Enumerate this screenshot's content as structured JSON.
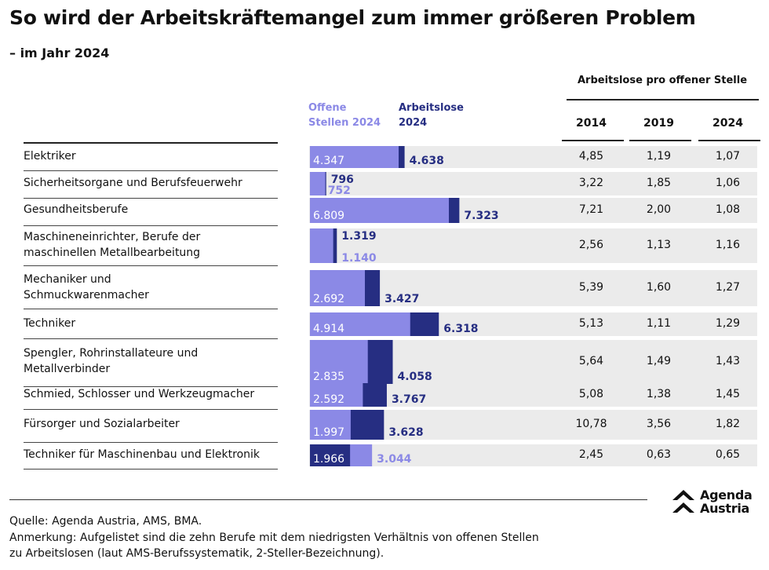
{
  "title": "So wird der Arbeitskräftemangel zum immer größeren Problem",
  "subtitle": "– im Jahr 2024",
  "ratio_header": "Arbeitslose pro offener Stelle",
  "legend": {
    "open_line1": "Offene",
    "open_line2": "Stellen 2024",
    "unemp_line1": "Arbeitslose",
    "unemp_line2": "2024"
  },
  "colors": {
    "open": "#8b89e6",
    "unemployed": "#262e82",
    "row_bg": "#ebebeb"
  },
  "years": [
    "2014",
    "2019",
    "2024"
  ],
  "chart_data": {
    "type": "bar",
    "orientation": "horizontal",
    "series": [
      {
        "name": "Offene Stellen 2024",
        "values": [
          4347,
          752,
          6809,
          1140,
          2692,
          4914,
          2835,
          2592,
          1997,
          3044
        ]
      },
      {
        "name": "Arbeitslose 2024",
        "values": [
          4638,
          796,
          7323,
          1319,
          3427,
          6318,
          4058,
          3767,
          3628,
          1966
        ]
      }
    ],
    "categories": [
      "Elektriker",
      "Sicherheitsorgane und Berufsfeuerwehr",
      "Gesundheitsberufe",
      "Maschineneinrichter, Berufe der maschinellen Metallbearbeitung",
      "Mechaniker und Schmuckwarenmacher",
      "Techniker",
      "Spengler, Rohrinstallateure und Metallverbinder",
      "Schmied, Schlosser und Werkzeugmacher",
      "Fürsorger und Sozialarbeiter",
      "Techniker für Maschinenbau und Elektronik"
    ],
    "rows": [
      {
        "lines": [
          "Elektriker"
        ],
        "open": 4347,
        "open_label": "4.347",
        "unemployed": 4638,
        "unemployed_label": "4.638",
        "ratio": [
          "4,85",
          "1,19",
          "1,07"
        ]
      },
      {
        "lines": [
          "Sicherheitsorgane und Berufsfeuerwehr"
        ],
        "open": 752,
        "open_label": "752",
        "unemployed": 796,
        "unemployed_label": "796",
        "ratio": [
          "3,22",
          "1,85",
          "1,06"
        ]
      },
      {
        "lines": [
          "Gesundheitsberufe"
        ],
        "open": 6809,
        "open_label": "6.809",
        "unemployed": 7323,
        "unemployed_label": "7.323",
        "ratio": [
          "7,21",
          "2,00",
          "1,08"
        ]
      },
      {
        "lines": [
          "Maschineneinrichter, Berufe der",
          "maschinellen Metallbearbeitung"
        ],
        "open": 1140,
        "open_label": "1.140",
        "unemployed": 1319,
        "unemployed_label": "1.319",
        "ratio": [
          "2,56",
          "1,13",
          "1,16"
        ]
      },
      {
        "lines": [
          "Mechaniker und",
          "Schmuckwarenmacher"
        ],
        "open": 2692,
        "open_label": "2.692",
        "unemployed": 3427,
        "unemployed_label": "3.427",
        "ratio": [
          "5,39",
          "1,60",
          "1,27"
        ]
      },
      {
        "lines": [
          "Techniker"
        ],
        "open": 4914,
        "open_label": "4.914",
        "unemployed": 6318,
        "unemployed_label": "6.318",
        "ratio": [
          "5,13",
          "1,11",
          "1,29"
        ]
      },
      {
        "lines": [
          "Spengler, Rohrinstallateure und",
          "Metallverbinder"
        ],
        "open": 2835,
        "open_label": "2.835",
        "unemployed": 4058,
        "unemployed_label": "4.058",
        "ratio": [
          "5,64",
          "1,49",
          "1,43"
        ]
      },
      {
        "lines": [
          "Schmied, Schlosser und Werkzeugmacher"
        ],
        "open": 2592,
        "open_label": "2.592",
        "unemployed": 3767,
        "unemployed_label": "3.767",
        "ratio": [
          "5,08",
          "1,38",
          "1,45"
        ]
      },
      {
        "lines": [
          "Fürsorger und Sozialarbeiter"
        ],
        "open": 1997,
        "open_label": "1.997",
        "unemployed": 3628,
        "unemployed_label": "3.628",
        "ratio": [
          "10,78",
          "3,56",
          "1,82"
        ]
      },
      {
        "lines": [
          "Techniker für Maschinenbau und Elektronik"
        ],
        "open": 3044,
        "open_label": "3.044",
        "unemployed": 1966,
        "unemployed_label": "1.966",
        "ratio": [
          "2,45",
          "0,63",
          "0,65"
        ]
      }
    ]
  },
  "footer": {
    "source": "Quelle: Agenda Austria, AMS, BMA.",
    "note_line1": "Anmerkung: Aufgelistet sind die zehn Berufe mit dem niedrigsten Verhältnis von offenen Stellen",
    "note_line2": "zu Arbeitslosen (laut AMS-Berufssystematik, 2-Steller-Bezeichnung)."
  },
  "logo": {
    "line1": "Agenda",
    "line2": "Austria"
  }
}
